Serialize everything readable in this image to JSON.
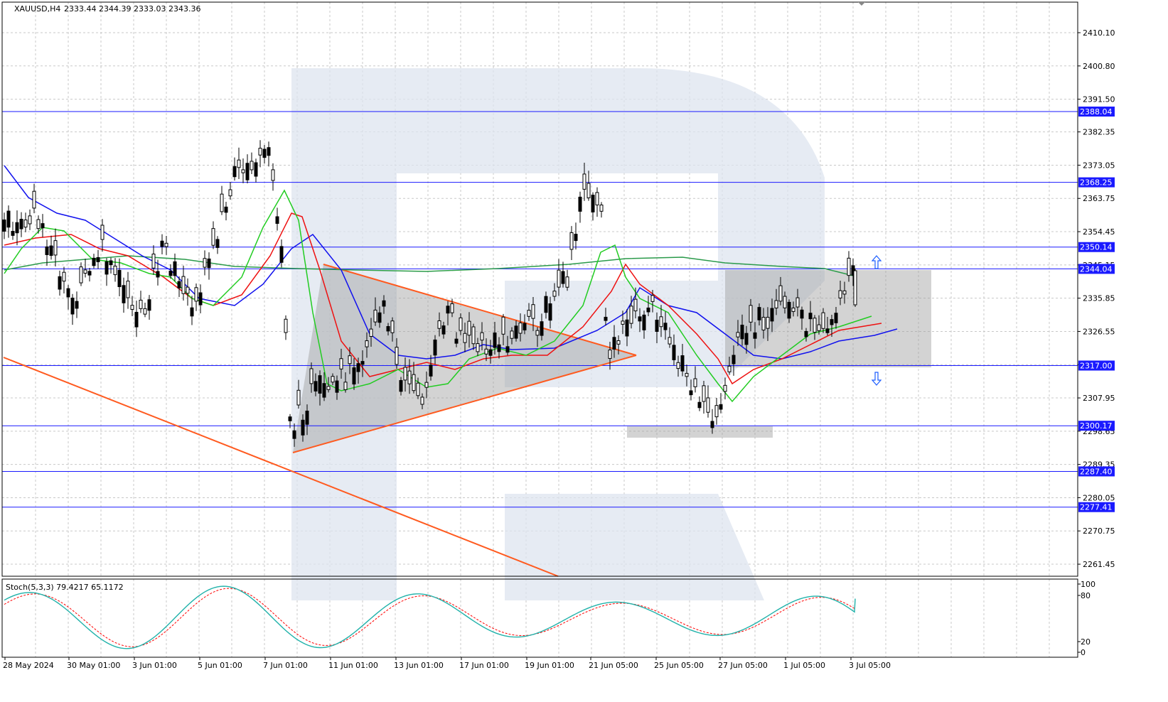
{
  "header": {
    "symbol": "XAUUSD,H4",
    "ohlc": "2333.44 2344.39 2333.03 2343.36"
  },
  "stoch_header": "Stoch(5,3,3) 79.4217 65.1172",
  "colors": {
    "background": "#ffffff",
    "grid": "#c8c8c8",
    "level_line": "#1a1aff",
    "badge": "#1a1aff",
    "trendline": "#ff5a1f",
    "ma_green": "#22cc22",
    "ma_red": "#ee1111",
    "ma_blue": "#1111ee",
    "ma200_green": "#2a9a4a",
    "stoch_main": "#20b2aa",
    "stoch_signal": "#ff0000",
    "zone_fill": "#9e9e9e",
    "watermark": "#dde4ef",
    "arrow": "#1a5cff"
  },
  "chart_data": [
    {
      "type": "candlestick",
      "timeframe": "H4",
      "symbol": "XAUUSD",
      "y_ticks": [
        "2410.10",
        "2400.80",
        "2391.50",
        "2382.35",
        "2373.05",
        "2363.75",
        "2354.45",
        "2345.15",
        "2335.85",
        "2326.55",
        "2317.25",
        "2307.95",
        "2298.65",
        "2289.35",
        "2280.05",
        "2270.75",
        "2261.45"
      ],
      "ylim": [
        2258,
        2417
      ],
      "x_ticks": [
        "28 May 2024",
        "30 May 01:00",
        "3 Jun 01:00",
        "5 Jun 01:00",
        "7 Jun 01:00",
        "11 Jun 01:00",
        "13 Jun 01:00",
        "17 Jun 01:00",
        "19 Jun 01:00",
        "21 Jun 05:00",
        "25 Jun 05:00",
        "27 Jun 05:00",
        "1 Jul 05:00",
        "3 Jul 05:00"
      ],
      "levels": [
        {
          "label": "2388.04",
          "value": 2388.04
        },
        {
          "label": "2368.25",
          "value": 2368.25
        },
        {
          "label": "2350.14",
          "value": 2350.14
        },
        {
          "label": "2344.04",
          "value": 2344.04
        },
        {
          "label": "2317.00",
          "value": 2317.0
        },
        {
          "label": "2300.17",
          "value": 2300.17
        },
        {
          "label": "2287.40",
          "value": 2287.4
        },
        {
          "label": "2277.41",
          "value": 2277.41
        }
      ],
      "current_price": 2343.36
    },
    {
      "type": "line",
      "name": "Stoch(5,3,3)",
      "main": 79.4217,
      "signal": 65.1172,
      "y_ticks": [
        "100",
        "80",
        "20",
        "0"
      ],
      "ylim": [
        0,
        100
      ]
    }
  ]
}
